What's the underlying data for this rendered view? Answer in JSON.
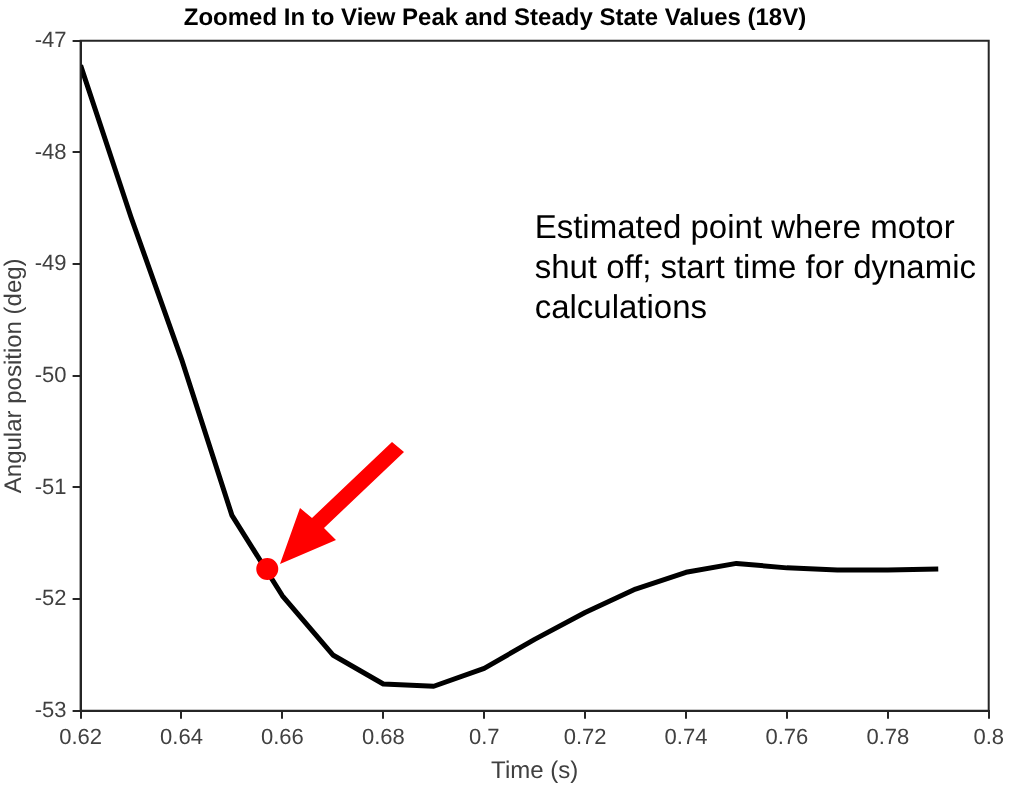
{
  "chart_data": {
    "type": "line",
    "title": "Zoomed In to View Peak and Steady State Values (18V)",
    "xlabel": "Time (s)",
    "ylabel": "Angular position (deg)",
    "xlim": [
      0.62,
      0.8
    ],
    "xticks": [
      0.62,
      0.64,
      0.66,
      0.68,
      0.7,
      0.72,
      0.74,
      0.76,
      0.78,
      0.8
    ],
    "ylim": [
      -53,
      -47
    ],
    "yticks": [
      -53,
      -52,
      -51,
      -50,
      -49,
      -48,
      -47
    ],
    "grid": false,
    "legend": false,
    "line_style": "solid",
    "series": [
      {
        "color": "#000000",
        "marker": "none",
        "x": [
          0.62,
          0.63,
          0.64,
          0.65,
          0.66,
          0.67,
          0.68,
          0.69,
          0.7,
          0.71,
          0.72,
          0.73,
          0.74,
          0.75,
          0.76,
          0.77,
          0.78,
          0.79
        ],
        "values": [
          -47.22,
          -48.58,
          -49.85,
          -51.25,
          -51.97,
          -52.5,
          -52.76,
          -52.78,
          -52.62,
          -52.36,
          -52.12,
          -51.91,
          -51.76,
          -51.68,
          -51.72,
          -51.74,
          -51.74,
          -51.73
        ]
      },
      {
        "type": "scatter",
        "color": "#ff0000",
        "marker": "circle",
        "x": [
          0.657
        ],
        "values": [
          -51.73
        ]
      }
    ],
    "annotations": [
      "Estimated point where motor shut off; start time for dynamic calculations"
    ]
  }
}
